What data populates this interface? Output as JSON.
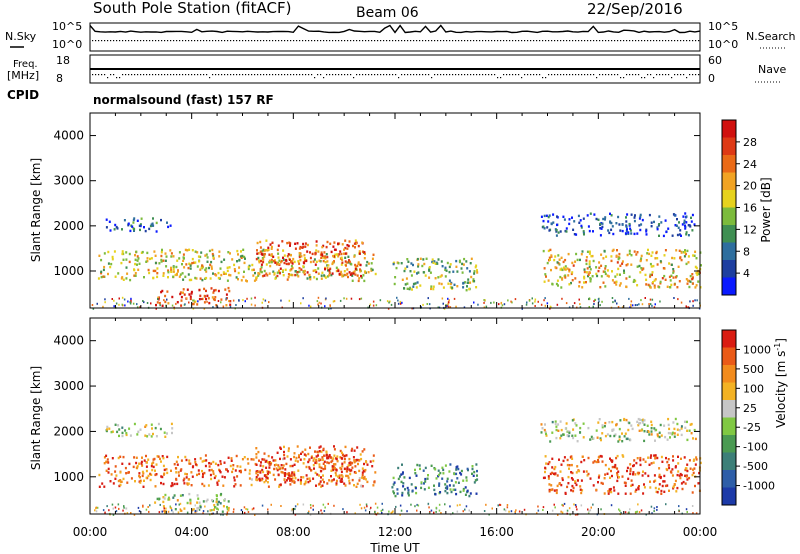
{
  "header": {
    "station": "South Pole Station (fitACF)",
    "beam": "Beam 06",
    "date": "22/Sep/2016"
  },
  "aux_labels": {
    "nsky": "N.Sky",
    "nsky_ticks": [
      "10^5",
      "10^0"
    ],
    "nsearch": "N.Search",
    "nsearch_ticks": [
      "10^5",
      "10^0"
    ],
    "freq_line1": "Freq.",
    "freq_line2": "[MHz]",
    "freq_ticks": [
      "18",
      "8"
    ],
    "nave": "Nave",
    "nave_ticks": [
      "60",
      "0"
    ],
    "cpid": "CPID",
    "cpid_value": "normalsound (fast) 157 RF"
  },
  "chart_data": [
    {
      "type": "heatmap",
      "title": "",
      "xlabel": "",
      "ylabel": "Slant Range [km]",
      "x_range_hours": [
        0,
        24
      ],
      "ylim": [
        180,
        4500
      ],
      "x_ticks": [
        "00:00",
        "04:00",
        "08:00",
        "12:00",
        "16:00",
        "20:00",
        "00:00"
      ],
      "y_ticks": [
        1000,
        2000,
        3000,
        4000
      ],
      "colorbar": {
        "label": "Power [dB]",
        "range": [
          0,
          32
        ],
        "ticks": [
          "4",
          "8",
          "12",
          "16",
          "20",
          "24",
          "28"
        ],
        "colors": [
          "#0a1aff",
          "#1e3fa0",
          "#2e6e9e",
          "#3f8f52",
          "#7cbb3c",
          "#e6d21d",
          "#f1a323",
          "#ea6a17",
          "#de3915",
          "#d0100e"
        ]
      },
      "echo_regions": [
        {
          "t0": 0.6,
          "t1": 3.2,
          "r0": 1900,
          "r1": 2200,
          "level": 0.2
        },
        {
          "t0": 0.3,
          "t1": 11.2,
          "r0": 800,
          "r1": 1500,
          "level": 0.55
        },
        {
          "t0": 6.5,
          "t1": 10.8,
          "r0": 900,
          "r1": 1700,
          "level": 0.8
        },
        {
          "t0": 2.5,
          "t1": 5.5,
          "r0": 250,
          "r1": 650,
          "level": 0.85
        },
        {
          "t0": 11.8,
          "t1": 15.2,
          "r0": 600,
          "r1": 1300,
          "level": 0.45
        },
        {
          "t0": 17.7,
          "t1": 23.8,
          "r0": 1800,
          "r1": 2300,
          "level": 0.15
        },
        {
          "t0": 17.8,
          "t1": 24.0,
          "r0": 650,
          "r1": 1500,
          "level": 0.6
        }
      ]
    },
    {
      "type": "heatmap",
      "title": "",
      "xlabel": "Time UT",
      "ylabel": "Slant Range [km]",
      "x_range_hours": [
        0,
        24
      ],
      "ylim": [
        180,
        4500
      ],
      "x_ticks": [
        "00:00",
        "04:00",
        "08:00",
        "12:00",
        "16:00",
        "20:00",
        "00:00"
      ],
      "y_ticks": [
        1000,
        2000,
        3000,
        4000
      ],
      "colorbar": {
        "label": "Velocity [m s",
        "label_sup": "-1",
        "label_end": "]",
        "ticks": [
          "1000",
          "500",
          "100",
          "25",
          "-25",
          "-100",
          "-500",
          "-1000"
        ],
        "colors": [
          "#1c3aa8",
          "#2e5ea8",
          "#3c7f78",
          "#4a9a52",
          "#80c843",
          "#c6c6c6",
          "#f3b224",
          "#f28b1c",
          "#ea5a17",
          "#d91c12"
        ]
      },
      "echo_regions": [
        {
          "t0": 0.6,
          "t1": 3.2,
          "r0": 1900,
          "r1": 2200,
          "level": 0.5
        },
        {
          "t0": 0.3,
          "t1": 11.2,
          "r0": 800,
          "r1": 1500,
          "level": 0.82
        },
        {
          "t0": 6.5,
          "t1": 10.8,
          "r0": 900,
          "r1": 1700,
          "level": 0.85
        },
        {
          "t0": 2.5,
          "t1": 5.5,
          "r0": 250,
          "r1": 650,
          "level": 0.5
        },
        {
          "t0": 11.8,
          "t1": 15.2,
          "r0": 600,
          "r1": 1300,
          "level": 0.25
        },
        {
          "t0": 17.7,
          "t1": 23.8,
          "r0": 1800,
          "r1": 2300,
          "level": 0.5
        },
        {
          "t0": 17.8,
          "t1": 24.0,
          "r0": 650,
          "r1": 1500,
          "level": 0.85
        }
      ]
    }
  ]
}
